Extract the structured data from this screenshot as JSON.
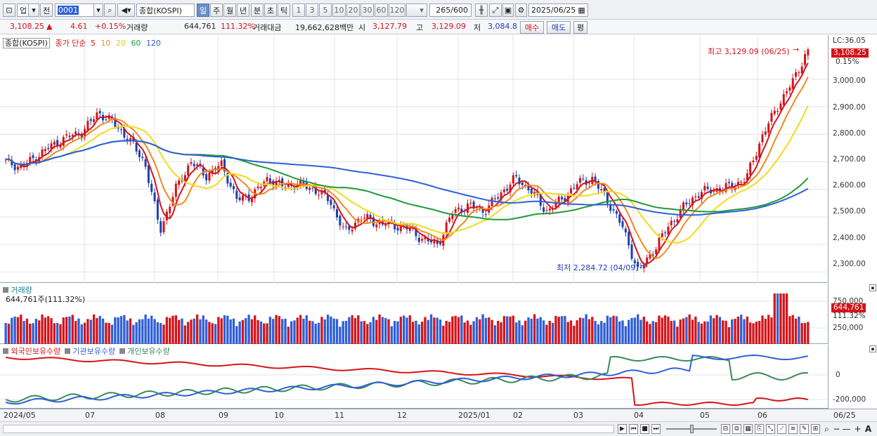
{
  "toolbar": {
    "market_select": "업",
    "prev_label": "전",
    "code_value": "0001",
    "index_name": "종합(KOSPI)",
    "periods": [
      "일",
      "주",
      "월",
      "년",
      "분",
      "초",
      "틱"
    ],
    "active_period": "일",
    "intervals": [
      "1",
      "3",
      "5",
      "10",
      "20",
      "30",
      "60",
      "120"
    ],
    "count_value": "265",
    "count_total": "/600",
    "date_value": "2025/06/25"
  },
  "info": {
    "price": "3,108.25",
    "change": "4.61",
    "change_pct": "+0.15%",
    "volume_label": "거래량",
    "volume": "644,761",
    "volume_pct": "111.32%",
    "amount_label": "거래대금",
    "amount": "19,662,628백만",
    "open_label": "시",
    "open": "3,127.79",
    "high_label": "고",
    "high": "3,129.09",
    "low_label": "저",
    "low": "3,084.8",
    "buy_label": "매수",
    "sell_label": "매도",
    "avg_label": "평"
  },
  "price_panel": {
    "legend_name": "종합(KOSPI)",
    "legend_ma": "종가 단순",
    "ma_periods": [
      "5",
      "10",
      "20",
      "60",
      "120"
    ],
    "ma_colors": [
      "#d4141a",
      "#f08a1e",
      "#f2dc18",
      "#1f9a3a",
      "#2f5fd6"
    ],
    "high_annotation": "최고 3,129.09 (06/25)",
    "low_annotation": "최저 2,284.72 (04/09)",
    "lc_label": "LC:36.05",
    "current_price_tag": "3,108.25",
    "current_pct": "0.15%",
    "y_ticks": [
      "3,000.00",
      "2,900.00",
      "2,800.00",
      "2,700.00",
      "2,600.00",
      "2,500.00",
      "2,400.00",
      "2,300.00"
    ]
  },
  "volume_panel": {
    "title": "거래량",
    "current": "644,761주(111.32%)",
    "tag": "644,761",
    "tag_pct": "111.32%",
    "y_ticks": [
      "750,000",
      "250,000"
    ]
  },
  "holdings_panel": {
    "legend": [
      "외국인보유수량",
      "기관보유수량",
      "개인보유수량"
    ],
    "colors": [
      "#2f5fd6",
      "#3a8a5a",
      "#d4141a"
    ],
    "y_ticks": [
      "0",
      "-200,000"
    ]
  },
  "x_axis": {
    "labels": [
      "2024/05",
      "07",
      "08",
      "09",
      "10",
      "11",
      "12",
      "2025/01",
      "02",
      "03",
      "04",
      "05",
      "06"
    ],
    "right_label": "06/25"
  },
  "chart_data": {
    "type": "candlestick",
    "title": "종합(KOSPI)",
    "ylim": [
      2250,
      3150
    ],
    "x_start": "2024/05",
    "x_end": "2025/06/25",
    "close_series": [
      2700,
      2680,
      2720,
      2760,
      2790,
      2810,
      2880,
      2840,
      2780,
      2700,
      2450,
      2600,
      2700,
      2650,
      2690,
      2560,
      2580,
      2640,
      2610,
      2620,
      2600,
      2560,
      2440,
      2500,
      2480,
      2470,
      2460,
      2420,
      2400,
      2520,
      2540,
      2520,
      2580,
      2640,
      2600,
      2520,
      2560,
      2620,
      2640,
      2560,
      2460,
      2300,
      2380,
      2470,
      2540,
      2590,
      2600,
      2610,
      2640,
      2790,
      2900,
      2990,
      3108.25
    ],
    "highest": 3129.09,
    "highest_date": "06/25",
    "lowest": 2284.72,
    "lowest_date": "04/09"
  }
}
